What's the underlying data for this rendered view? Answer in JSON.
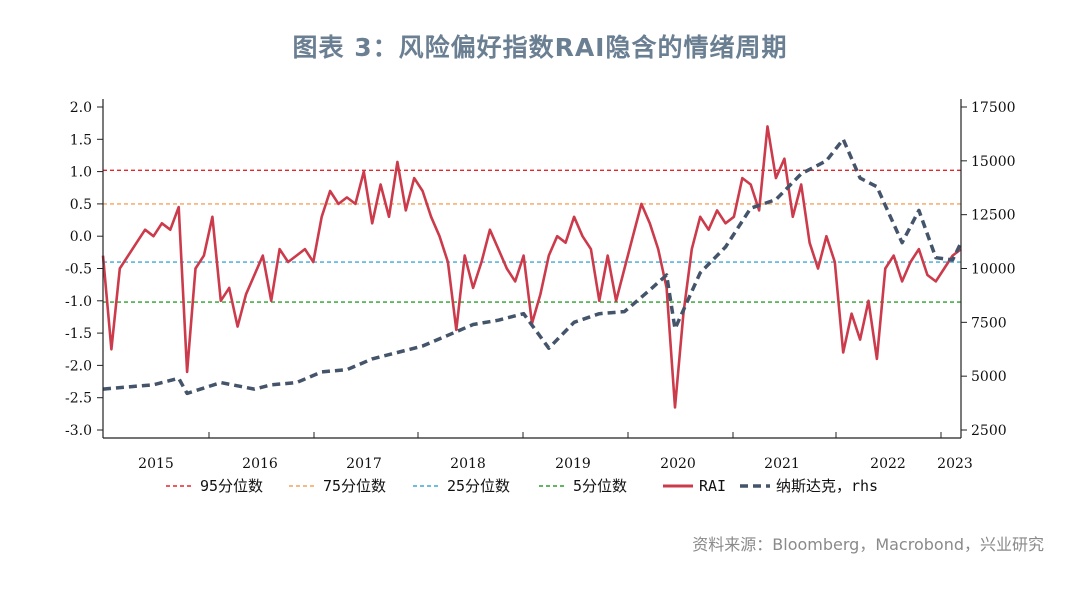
{
  "title": "图表 3：风险偏好指数RAI隐含的情绪周期",
  "source": "资料来源：Bloomberg，Macrobond，兴业研究",
  "chart_data": {
    "type": "line",
    "x_ticks": [
      "2015",
      "2016",
      "2017",
      "2018",
      "2019",
      "2020",
      "2021",
      "2022",
      "2023"
    ],
    "x_range": [
      "2014-07",
      "2023-01"
    ],
    "y_left": {
      "ticks": [
        "2.0",
        "1.5",
        "1.0",
        "0.5",
        "0.0",
        "-0.5",
        "-1.0",
        "-1.5",
        "-2.0",
        "-2.5",
        "-3.0"
      ],
      "ylim": [
        -3.0,
        2.0
      ]
    },
    "y_right": {
      "ticks": [
        "17500",
        "15000",
        "12500",
        "10000",
        "7500",
        "5000",
        "2500"
      ],
      "ylim": [
        2500,
        17500
      ]
    },
    "grid": false,
    "legend_position": "bottom",
    "reference_lines": [
      {
        "name": "95分位数",
        "value": 1.02,
        "color": "#e8242b",
        "style": "dashed"
      },
      {
        "name": "75分位数",
        "value": 0.5,
        "color": "#f5a25d",
        "style": "dashed"
      },
      {
        "name": "25分位数",
        "value": -0.4,
        "color": "#3fa9d6",
        "style": "dashed"
      },
      {
        "name": "5分位数",
        "value": -1.02,
        "color": "#2aa02a",
        "style": "dashed"
      }
    ],
    "series": [
      {
        "name": "RAI",
        "axis": "left",
        "color": "#cc3b4b",
        "style": "solid",
        "points": [
          [
            "2014-07",
            -0.3
          ],
          [
            "2014-08",
            -1.75
          ],
          [
            "2014-09",
            -0.5
          ],
          [
            "2014-10",
            -0.3
          ],
          [
            "2014-11",
            -0.1
          ],
          [
            "2014-12",
            0.1
          ],
          [
            "2015-01",
            0.0
          ],
          [
            "2015-02",
            0.2
          ],
          [
            "2015-03",
            0.1
          ],
          [
            "2015-04",
            0.45
          ],
          [
            "2015-05",
            -2.1
          ],
          [
            "2015-06",
            -0.5
          ],
          [
            "2015-07",
            -0.3
          ],
          [
            "2015-08",
            0.3
          ],
          [
            "2015-09",
            -1.0
          ],
          [
            "2015-10",
            -0.8
          ],
          [
            "2015-11",
            -1.4
          ],
          [
            "2015-12",
            -0.9
          ],
          [
            "2016-01",
            -0.6
          ],
          [
            "2016-02",
            -0.3
          ],
          [
            "2016-03",
            -1.0
          ],
          [
            "2016-04",
            -0.2
          ],
          [
            "2016-05",
            -0.4
          ],
          [
            "2016-06",
            -0.3
          ],
          [
            "2016-07",
            -0.2
          ],
          [
            "2016-08",
            -0.4
          ],
          [
            "2016-09",
            0.3
          ],
          [
            "2016-10",
            0.7
          ],
          [
            "2016-11",
            0.5
          ],
          [
            "2016-12",
            0.6
          ],
          [
            "2017-01",
            0.5
          ],
          [
            "2017-02",
            1.0
          ],
          [
            "2017-03",
            0.2
          ],
          [
            "2017-04",
            0.8
          ],
          [
            "2017-05",
            0.3
          ],
          [
            "2017-06",
            1.15
          ],
          [
            "2017-07",
            0.4
          ],
          [
            "2017-08",
            0.9
          ],
          [
            "2017-09",
            0.7
          ],
          [
            "2017-10",
            0.3
          ],
          [
            "2017-11",
            0.0
          ],
          [
            "2017-12",
            -0.4
          ],
          [
            "2018-01",
            -1.45
          ],
          [
            "2018-02",
            -0.3
          ],
          [
            "2018-03",
            -0.8
          ],
          [
            "2018-04",
            -0.4
          ],
          [
            "2018-05",
            0.1
          ],
          [
            "2018-06",
            -0.2
          ],
          [
            "2018-07",
            -0.5
          ],
          [
            "2018-08",
            -0.7
          ],
          [
            "2018-09",
            -0.3
          ],
          [
            "2018-10",
            -1.35
          ],
          [
            "2018-11",
            -0.9
          ],
          [
            "2018-12",
            -0.3
          ],
          [
            "2019-01",
            0.0
          ],
          [
            "2019-02",
            -0.1
          ],
          [
            "2019-03",
            0.3
          ],
          [
            "2019-04",
            0.0
          ],
          [
            "2019-05",
            -0.2
          ],
          [
            "2019-06",
            -1.0
          ],
          [
            "2019-07",
            -0.3
          ],
          [
            "2019-08",
            -1.0
          ],
          [
            "2019-09",
            -0.5
          ],
          [
            "2019-10",
            0.0
          ],
          [
            "2019-11",
            0.5
          ],
          [
            "2019-12",
            0.2
          ],
          [
            "2020-01",
            -0.2
          ],
          [
            "2020-02",
            -0.8
          ],
          [
            "2020-03",
            -2.65
          ],
          [
            "2020-04",
            -1.2
          ],
          [
            "2020-05",
            -0.2
          ],
          [
            "2020-06",
            0.3
          ],
          [
            "2020-07",
            0.1
          ],
          [
            "2020-08",
            0.4
          ],
          [
            "2020-09",
            0.2
          ],
          [
            "2020-10",
            0.3
          ],
          [
            "2020-11",
            0.9
          ],
          [
            "2020-12",
            0.8
          ],
          [
            "2021-01",
            0.4
          ],
          [
            "2021-02",
            1.7
          ],
          [
            "2021-03",
            0.9
          ],
          [
            "2021-04",
            1.2
          ],
          [
            "2021-05",
            0.3
          ],
          [
            "2021-06",
            0.8
          ],
          [
            "2021-07",
            -0.1
          ],
          [
            "2021-08",
            -0.5
          ],
          [
            "2021-09",
            0.0
          ],
          [
            "2021-10",
            -0.4
          ],
          [
            "2021-11",
            -1.8
          ],
          [
            "2021-12",
            -1.2
          ],
          [
            "2022-01",
            -1.6
          ],
          [
            "2022-02",
            -1.0
          ],
          [
            "2022-03",
            -1.9
          ],
          [
            "2022-04",
            -0.5
          ],
          [
            "2022-05",
            -0.3
          ],
          [
            "2022-06",
            -0.7
          ],
          [
            "2022-07",
            -0.4
          ],
          [
            "2022-08",
            -0.2
          ],
          [
            "2022-09",
            -0.6
          ],
          [
            "2022-10",
            -0.7
          ],
          [
            "2022-11",
            -0.5
          ],
          [
            "2022-12",
            -0.3
          ],
          [
            "2023-01",
            -0.2
          ]
        ]
      },
      {
        "name": "纳斯达克, rhs",
        "axis": "right",
        "color": "#44546a",
        "style": "dashed",
        "points": [
          [
            "2014-07",
            4400
          ],
          [
            "2014-10",
            4500
          ],
          [
            "2015-01",
            4600
          ],
          [
            "2015-04",
            4900
          ],
          [
            "2015-05",
            4200
          ],
          [
            "2015-09",
            4700
          ],
          [
            "2016-01",
            4400
          ],
          [
            "2016-03",
            4600
          ],
          [
            "2016-06",
            4700
          ],
          [
            "2016-09",
            5200
          ],
          [
            "2016-12",
            5300
          ],
          [
            "2017-03",
            5800
          ],
          [
            "2017-06",
            6100
          ],
          [
            "2017-09",
            6400
          ],
          [
            "2017-12",
            6900
          ],
          [
            "2018-03",
            7400
          ],
          [
            "2018-06",
            7600
          ],
          [
            "2018-09",
            7900
          ],
          [
            "2018-12",
            6300
          ],
          [
            "2019-03",
            7500
          ],
          [
            "2019-06",
            7900
          ],
          [
            "2019-09",
            8000
          ],
          [
            "2019-12",
            9000
          ],
          [
            "2020-02",
            9700
          ],
          [
            "2020-03",
            7200
          ],
          [
            "2020-06",
            9800
          ],
          [
            "2020-09",
            11000
          ],
          [
            "2020-12",
            12800
          ],
          [
            "2021-03",
            13200
          ],
          [
            "2021-06",
            14400
          ],
          [
            "2021-09",
            15000
          ],
          [
            "2021-11",
            16000
          ],
          [
            "2022-01",
            14200
          ],
          [
            "2022-03",
            13800
          ],
          [
            "2022-06",
            11200
          ],
          [
            "2022-08",
            12700
          ],
          [
            "2022-10",
            10500
          ],
          [
            "2022-12",
            10400
          ],
          [
            "2023-01",
            11200
          ]
        ]
      }
    ],
    "legend": [
      {
        "label": "95分位数",
        "color": "#e8242b",
        "style": "dashed"
      },
      {
        "label": "75分位数",
        "color": "#f5a25d",
        "style": "dashed"
      },
      {
        "label": "25分位数",
        "color": "#3fa9d6",
        "style": "dashed"
      },
      {
        "label": "5分位数",
        "color": "#2aa02a",
        "style": "dashed"
      },
      {
        "label": "RAI",
        "color": "#cc3b4b",
        "style": "solid"
      },
      {
        "label": "纳斯达克，rhs",
        "color": "#44546a",
        "style": "bold-dashed"
      }
    ]
  }
}
